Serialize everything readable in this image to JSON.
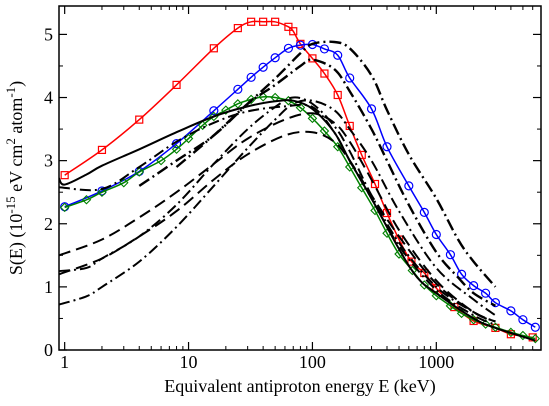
{
  "chart_data": {
    "type": "line",
    "xlabel": "Equivalent antiproton energy E (keV)",
    "ylabel_parts": {
      "pre": "S(E) (10",
      "exp1": "-15",
      "mid": " eV cm",
      "exp2": "2",
      "mid2": " atom",
      "exp3": "-1",
      "post": ")"
    },
    "xscale": "log",
    "xlim": [
      0.9,
      7000
    ],
    "ylim": [
      0,
      5.45
    ],
    "xticks": [
      {
        "value": 1,
        "label": "1"
      },
      {
        "value": 10,
        "label": "10"
      },
      {
        "value": 100,
        "label": "100"
      },
      {
        "value": 1000,
        "label": "1000"
      }
    ],
    "yticks": [
      {
        "value": 0,
        "label": "0"
      },
      {
        "value": 1,
        "label": "1"
      },
      {
        "value": 2,
        "label": "2"
      },
      {
        "value": 3,
        "label": "3"
      },
      {
        "value": 4,
        "label": "4"
      },
      {
        "value": 5,
        "label": "5"
      }
    ],
    "grid": false,
    "series": [
      {
        "style": "marker-line",
        "color": "#ff0000",
        "marker": "square",
        "x": [
          1,
          2,
          4,
          8,
          16,
          25,
          32,
          40,
          50,
          64,
          70,
          80,
          100,
          125,
          160,
          200,
          250,
          320,
          400,
          500,
          630,
          800,
          1000,
          1400,
          2000,
          3000,
          4000,
          6000
        ],
        "y": [
          2.77,
          3.17,
          3.65,
          4.2,
          4.78,
          5.1,
          5.2,
          5.2,
          5.2,
          5.12,
          5.05,
          4.85,
          4.62,
          4.38,
          4.04,
          3.55,
          3.09,
          2.63,
          2.17,
          1.75,
          1.4,
          1.22,
          0.98,
          0.68,
          0.46,
          0.35,
          0.25,
          0.2
        ]
      },
      {
        "style": "marker-line",
        "color": "#0000ff",
        "marker": "circle",
        "x": [
          1,
          2,
          4,
          8,
          16,
          25,
          32,
          40,
          50,
          64,
          80,
          100,
          125,
          160,
          200,
          300,
          400,
          600,
          800,
          1000,
          1300,
          1600,
          2000,
          2500,
          3000,
          4000,
          5000,
          6300
        ],
        "y": [
          2.27,
          2.52,
          2.83,
          3.27,
          3.79,
          4.13,
          4.32,
          4.48,
          4.63,
          4.78,
          4.83,
          4.84,
          4.77,
          4.67,
          4.31,
          3.82,
          3.22,
          2.6,
          2.18,
          1.83,
          1.51,
          1.2,
          1.02,
          0.9,
          0.75,
          0.62,
          0.48,
          0.36
        ]
      },
      {
        "style": "marker-line",
        "color": "#008000",
        "marker": "diamond",
        "x": [
          1,
          1.5,
          2,
          3,
          4,
          6,
          8,
          10,
          13,
          16,
          20,
          25,
          32,
          40,
          50,
          64,
          80,
          100,
          125,
          160,
          200,
          250,
          320,
          400,
          500,
          640,
          800,
          1000,
          1300,
          1600,
          2000,
          2500,
          3000,
          4000,
          5000,
          6300
        ],
        "y": [
          2.26,
          2.38,
          2.5,
          2.65,
          2.82,
          3.0,
          3.18,
          3.35,
          3.56,
          3.7,
          3.8,
          3.9,
          3.97,
          4.01,
          4.0,
          3.95,
          3.84,
          3.67,
          3.47,
          3.22,
          2.9,
          2.57,
          2.21,
          1.85,
          1.52,
          1.26,
          1.03,
          0.86,
          0.7,
          0.58,
          0.48,
          0.41,
          0.36,
          0.28,
          0.23,
          0.18
        ]
      },
      {
        "style": "solid",
        "color": "#000000",
        "x": [
          0.9,
          1,
          1.5,
          2,
          4,
          8,
          16,
          30,
          50,
          70,
          100,
          150,
          200,
          300,
          500,
          700,
          1000,
          2000,
          3000,
          6300
        ],
        "y": [
          2.72,
          2.62,
          2.78,
          2.92,
          3.18,
          3.45,
          3.7,
          3.86,
          3.94,
          3.95,
          3.82,
          3.45,
          3.0,
          2.4,
          1.6,
          1.15,
          0.9,
          0.5,
          0.35,
          0.15
        ]
      },
      {
        "style": "dash-dot",
        "color": "#000000",
        "x": [
          0.9,
          2,
          4,
          8,
          16,
          30,
          60,
          100,
          150,
          200,
          300,
          500,
          1000,
          2000,
          3000
        ],
        "y": [
          2.58,
          2.55,
          2.9,
          3.3,
          3.6,
          3.78,
          3.86,
          3.85,
          3.45,
          3.0,
          2.4,
          1.65,
          0.95,
          0.55,
          0.4
        ]
      },
      {
        "style": "dash-dot",
        "color": "#000000",
        "x": [
          0.9,
          1.5,
          2,
          4,
          8,
          16,
          30,
          50,
          70,
          100,
          150,
          200,
          300,
          500,
          1000,
          2000,
          3000
        ],
        "y": [
          1.25,
          1.3,
          1.45,
          1.8,
          2.3,
          2.95,
          3.5,
          3.85,
          4.0,
          3.9,
          3.55,
          3.15,
          2.45,
          1.7,
          1.0,
          0.6,
          0.45
        ]
      },
      {
        "style": "dash-dot",
        "color": "#000000",
        "x": [
          0.9,
          1.5,
          2,
          4,
          8,
          16,
          30,
          50,
          70,
          100,
          150,
          200,
          300,
          500,
          1000,
          2000,
          3000
        ],
        "y": [
          0.72,
          0.85,
          1.0,
          1.4,
          1.95,
          2.6,
          3.2,
          3.65,
          3.9,
          3.95,
          3.8,
          3.5,
          3.0,
          2.2,
          1.3,
          0.8,
          0.55
        ]
      },
      {
        "style": "long-dash",
        "color": "#000000",
        "x": [
          0.9,
          2,
          4,
          8,
          16,
          30,
          60,
          100,
          150,
          200,
          300,
          500,
          1000,
          2000,
          3000
        ],
        "y": [
          1.5,
          1.75,
          2.1,
          2.5,
          2.95,
          3.35,
          3.65,
          3.75,
          3.6,
          3.3,
          2.7,
          1.9,
          1.1,
          0.6,
          0.45
        ]
      },
      {
        "style": "long-dash",
        "color": "#000000",
        "x": [
          0.9,
          2,
          4,
          8,
          16,
          30,
          60,
          100,
          150,
          200,
          300,
          500,
          1000,
          2000,
          3000
        ],
        "y": [
          1.2,
          1.45,
          1.8,
          2.2,
          2.7,
          3.1,
          3.4,
          3.45,
          3.3,
          3.0,
          2.45,
          1.8,
          1.05,
          0.6,
          0.45
        ]
      },
      {
        "style": "dash-dot-bold",
        "color": "#000000",
        "x": [
          4,
          8,
          16,
          30,
          50,
          80,
          100,
          150,
          200,
          300,
          400,
          600,
          1000,
          1500,
          2000,
          3000
        ],
        "y": [
          2.6,
          3.0,
          3.4,
          3.9,
          4.3,
          4.7,
          4.85,
          4.88,
          4.78,
          4.35,
          3.8,
          3.1,
          2.4,
          1.75,
          1.4,
          1.0
        ]
      },
      {
        "style": "dash-dot-bold",
        "color": "#000000",
        "x": [
          8,
          16,
          30,
          50,
          80,
          100,
          150,
          200,
          300,
          400,
          600,
          1000,
          1500,
          2000,
          3000
        ],
        "y": [
          2.9,
          3.4,
          3.9,
          4.2,
          4.5,
          4.6,
          4.45,
          4.1,
          3.5,
          3.0,
          2.3,
          1.55,
          1.15,
          0.9,
          0.7
        ]
      }
    ]
  }
}
